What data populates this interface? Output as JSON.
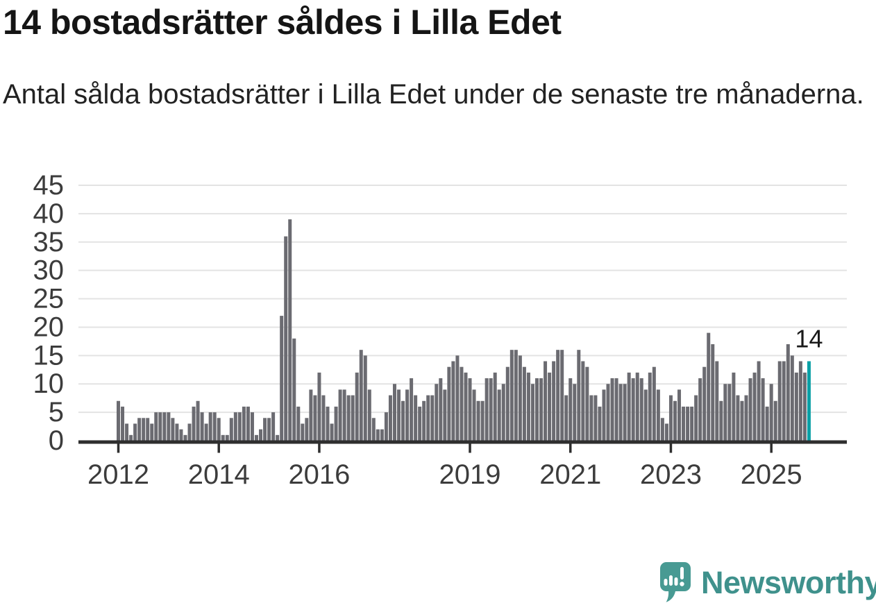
{
  "header": {
    "title": "14 bostadsrätter såldes i Lilla Edet",
    "subtitle": "Antal sålda bostadsrätter i Lilla Edet under de senaste tre månaderna."
  },
  "footer": {
    "logo_text": "Newsworthy"
  },
  "chart_data": {
    "type": "bar",
    "title": "14 bostadsrätter såldes i Lilla Edet",
    "subtitle": "Antal sålda bostadsrätter i Lilla Edet under de senaste tre månaderna.",
    "frequency": "monthly",
    "x_start": "2012-01",
    "x_end": "2025-10",
    "values": [
      7,
      6,
      3,
      1,
      3,
      4,
      4,
      4,
      3,
      5,
      5,
      5,
      5,
      4,
      3,
      2,
      1,
      3,
      6,
      7,
      5,
      3,
      5,
      5,
      4,
      1,
      1,
      4,
      5,
      5,
      6,
      6,
      5,
      1,
      2,
      4,
      4,
      5,
      1,
      22,
      36,
      39,
      18,
      6,
      3,
      4,
      9,
      8,
      12,
      8,
      6,
      3,
      6,
      9,
      9,
      8,
      8,
      12,
      16,
      15,
      9,
      4,
      2,
      2,
      5,
      8,
      10,
      9,
      7,
      9,
      11,
      8,
      6,
      7,
      8,
      8,
      10,
      11,
      9,
      13,
      14,
      15,
      13,
      12,
      11,
      9,
      7,
      7,
      11,
      11,
      12,
      9,
      10,
      13,
      16,
      16,
      15,
      13,
      12,
      10,
      11,
      11,
      14,
      12,
      14,
      16,
      16,
      8,
      11,
      10,
      16,
      14,
      13,
      8,
      8,
      6,
      9,
      10,
      11,
      11,
      10,
      10,
      12,
      11,
      12,
      11,
      9,
      12,
      13,
      9,
      4,
      3,
      8,
      7,
      9,
      6,
      6,
      6,
      8,
      11,
      13,
      19,
      17,
      14,
      7,
      10,
      10,
      12,
      8,
      7,
      8,
      11,
      12,
      14,
      11,
      6,
      10,
      7,
      14,
      14,
      17,
      15,
      12,
      14,
      12,
      14
    ],
    "highlight_index": 165,
    "highlight_value": 14,
    "annotation_label": "14",
    "ylim": [
      0,
      45
    ],
    "y_ticks": [
      0,
      5,
      10,
      15,
      20,
      25,
      30,
      35,
      40,
      45
    ],
    "x_tick_years": [
      2012,
      2014,
      2016,
      2019,
      2021,
      2023,
      2025
    ],
    "x_tick_start_year": 2012,
    "grid": true,
    "legend": "none",
    "colors": {
      "bar": "#6b6b71",
      "highlight": "#0aa0a6",
      "axis": "#2e2e2e",
      "grid": "#e3e3e3",
      "tick_label": "#3c3c3c",
      "annotation": "#1a1a1a",
      "logo": "#3f918c"
    }
  }
}
